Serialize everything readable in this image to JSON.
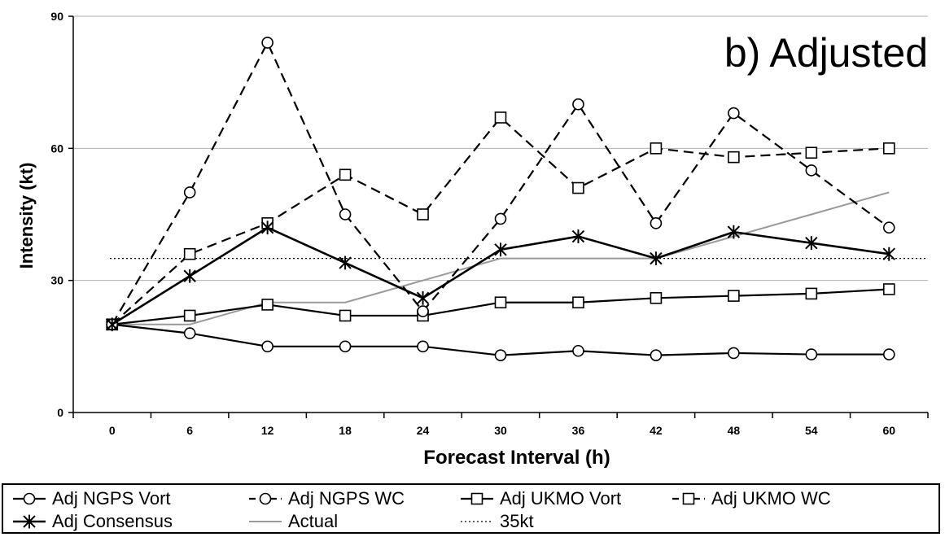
{
  "chart_data": {
    "type": "line",
    "title": "b)  Adjusted",
    "xlabel": "Forecast Interval (h)",
    "ylabel": "Intensity (kt)",
    "x": [
      0,
      6,
      12,
      18,
      24,
      30,
      36,
      42,
      48,
      54,
      60
    ],
    "x_ticks": [
      "0",
      "6",
      "12",
      "18",
      "24",
      "30",
      "36",
      "42",
      "48",
      "54",
      "60"
    ],
    "ylim": [
      0,
      90
    ],
    "y_ticks": [
      0,
      30,
      60,
      90
    ],
    "grid": "horizontal at 30 and 60",
    "legend_placement": "bottom",
    "series": [
      {
        "name": "Adj NGPS Vort",
        "style": "solid-circle",
        "values": [
          20,
          18,
          15,
          15,
          15,
          13,
          14,
          13,
          13.5,
          13.2,
          13.2
        ]
      },
      {
        "name": "Adj NGPS WC",
        "style": "dashed-circle",
        "values": [
          20,
          50,
          84,
          45,
          23,
          44,
          70,
          43,
          68,
          55,
          42
        ]
      },
      {
        "name": "Adj UKMO Vort",
        "style": "solid-square",
        "values": [
          20,
          22,
          24.5,
          22,
          22,
          25,
          25,
          26,
          26.5,
          27,
          28
        ]
      },
      {
        "name": "Adj UKMO WC",
        "style": "dashed-square",
        "values": [
          20,
          36,
          43,
          54,
          45,
          67,
          51,
          60,
          58,
          59,
          60
        ]
      },
      {
        "name": "Adj Consensus",
        "style": "solid-star",
        "values": [
          20,
          31,
          42,
          34,
          26,
          37,
          40,
          35,
          41,
          38.5,
          36
        ]
      },
      {
        "name": "Actual",
        "style": "gray",
        "values": [
          20,
          20,
          25,
          25,
          30,
          35,
          35,
          35,
          40,
          45,
          50
        ]
      },
      {
        "name": "35kt",
        "style": "dotted",
        "values": [
          35,
          35,
          35,
          35,
          35,
          35,
          35,
          35,
          35,
          35,
          35
        ]
      }
    ]
  },
  "colors": {
    "series": "#000000",
    "actual": "#9a9a9a",
    "grid": "#b0b0b0"
  }
}
